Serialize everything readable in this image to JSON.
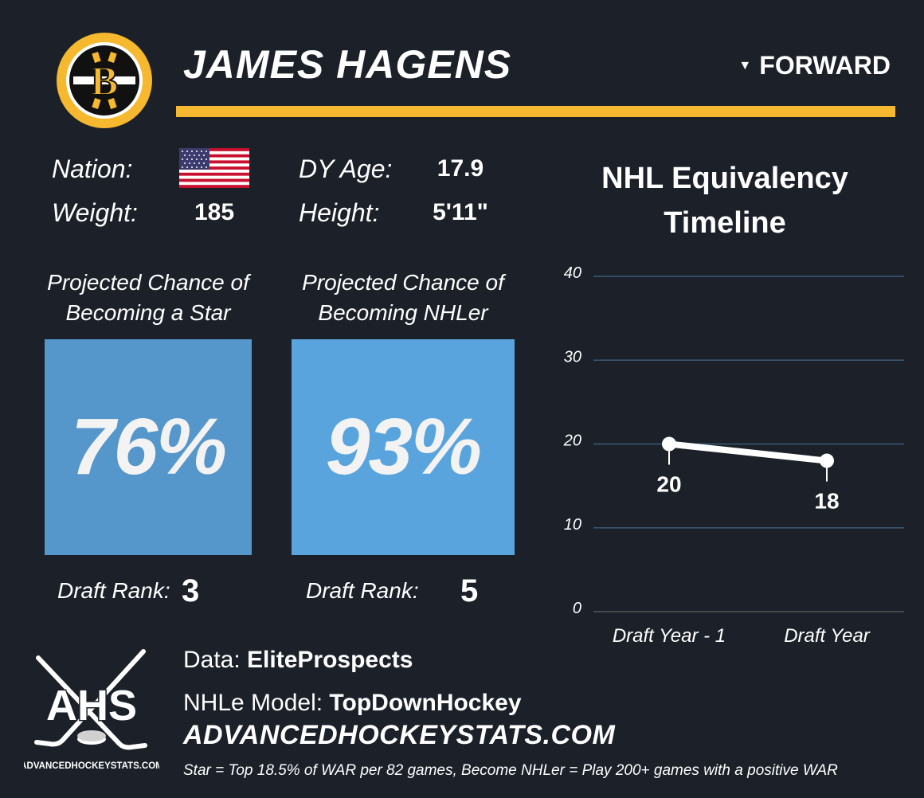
{
  "header": {
    "player_name": "JAMES HAGENS",
    "position": "FORWARD",
    "team_logo_letter": "B"
  },
  "info": {
    "nation_label": "Nation:",
    "nation_flag": "us-flag",
    "weight_label": "Weight:",
    "weight_value": "185",
    "dy_age_label": "DY Age:",
    "dy_age_value": "17.9",
    "height_label": "Height:",
    "height_value": "5'11\""
  },
  "cards": [
    {
      "title_line1": "Projected Chance of",
      "title_line2": "Becoming a Star",
      "value": "76%",
      "value_fraction": 0.76,
      "color": "#5596cb",
      "rank_label": "Draft Rank:",
      "rank_value": "3"
    },
    {
      "title_line1": "Projected Chance of",
      "title_line2": "Becoming NHLer",
      "value": "93%",
      "value_fraction": 0.93,
      "color": "#5aa4de",
      "rank_label": "Draft Rank:",
      "rank_value": "5"
    }
  ],
  "chart_title_line1": "NHL Equivalency",
  "chart_title_line2": "Timeline",
  "chart_data": {
    "type": "line",
    "title": "NHL Equivalency Timeline",
    "categories": [
      "Draft Year - 1",
      "Draft Year"
    ],
    "series": [
      {
        "name": "NHLe",
        "values": [
          20,
          18
        ]
      }
    ],
    "data_labels": [
      "20",
      "18"
    ],
    "ylim": [
      0,
      40
    ],
    "yticks": [
      0,
      10,
      20,
      30,
      40
    ],
    "grid": true,
    "xlabel": "",
    "ylabel": ""
  },
  "footer": {
    "data_prefix": "Data: ",
    "data_source": "EliteProspects",
    "model_prefix": "NHLe Model: ",
    "model_source": "TopDownHockey",
    "site_url": "ADVANCEDHOCKEYSTATS.COM",
    "footnote": "Star = Top 18.5% of WAR per 82 games, Become NHLer = Play 200+ games with a positive WAR",
    "logo_text": "AHS",
    "logo_subtext": "ADVANCEDHOCKEYSTATS.COM"
  },
  "colors": {
    "background": "#1b2029",
    "accent": "#f5b82e",
    "gridline": "#3d5a74"
  }
}
